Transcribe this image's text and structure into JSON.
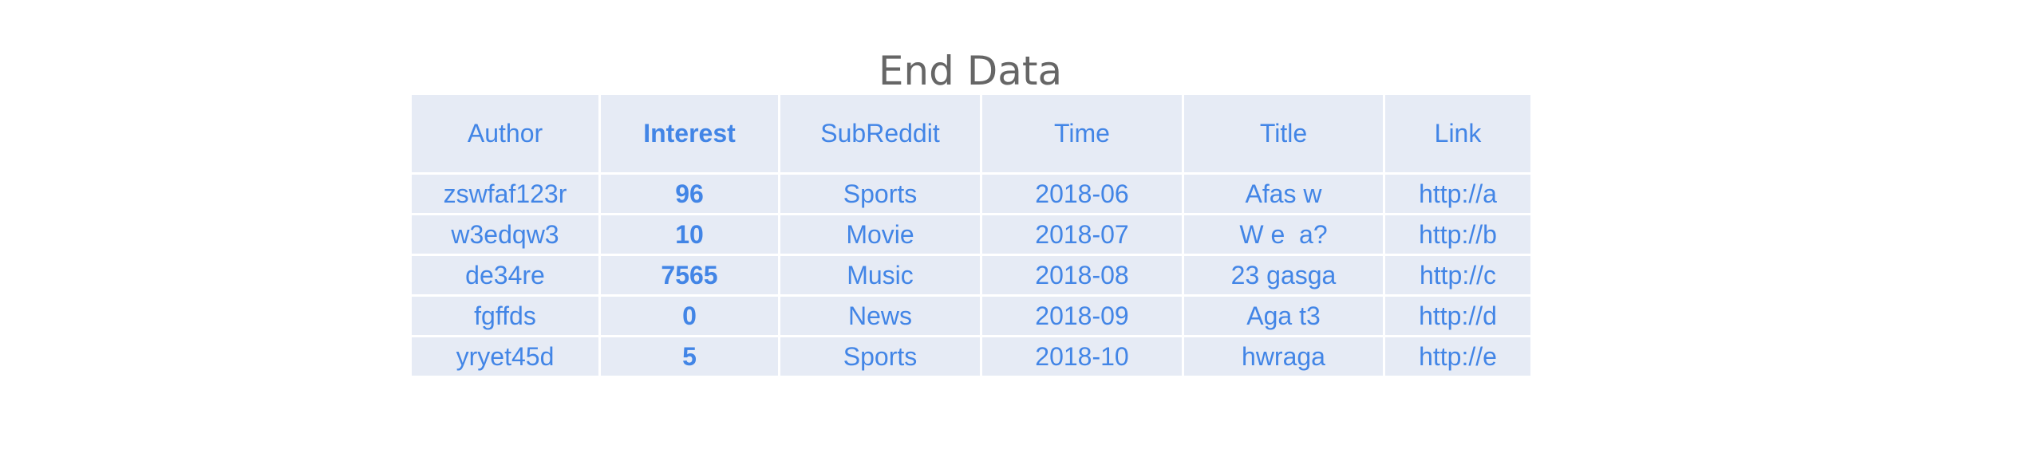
{
  "chart_data": {
    "type": "table",
    "title": "End Data",
    "columns": [
      "Author",
      "Interest",
      "SubReddit",
      "Time",
      "Title",
      "Link"
    ],
    "bold_column": "Interest",
    "rows": [
      [
        "zswfaf123r",
        "96",
        "Sports",
        "2018-06",
        "Afas w",
        "http://a"
      ],
      [
        "w3edqw3",
        "10",
        "Movie",
        "2018-07",
        "W e  a?",
        "http://b"
      ],
      [
        "de34re",
        "7565",
        "Music",
        "2018-08",
        "23 gasga",
        "http://c"
      ],
      [
        "fgffds",
        "0",
        "News",
        "2018-09",
        "Aga t3",
        "http://d"
      ],
      [
        "yryet45d",
        "5",
        "Sports",
        "2018-10",
        "hwraga",
        "http://e"
      ]
    ],
    "colors": {
      "cell_background": "#e6ebf5",
      "text": "#4285e6",
      "title": "#666666",
      "grid_lines": "#ffffff"
    }
  }
}
